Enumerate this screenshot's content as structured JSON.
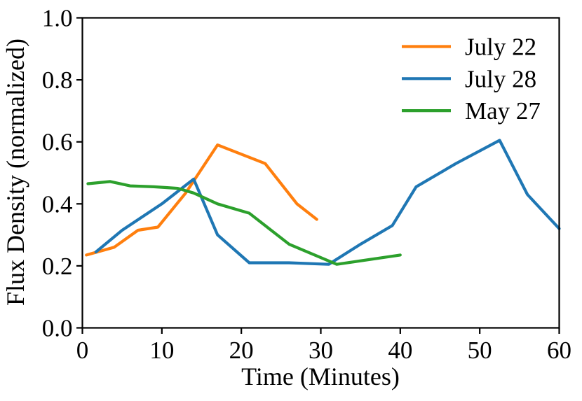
{
  "chart_data": {
    "type": "line",
    "title": "",
    "xlabel": "Time (Minutes)",
    "ylabel": "Flux Density (normalized)",
    "xlim": [
      0,
      60
    ],
    "ylim": [
      0.0,
      1.0
    ],
    "x_ticks": [
      0,
      10,
      20,
      30,
      40,
      50,
      60
    ],
    "y_ticks": [
      0.0,
      0.2,
      0.4,
      0.6,
      0.8,
      1.0
    ],
    "grid": false,
    "legend_position": "upper right",
    "axis_color": "#000000",
    "series": [
      {
        "name": "July 22",
        "color": "#ff7f0e",
        "points": [
          [
            0.5,
            0.235
          ],
          [
            4,
            0.26
          ],
          [
            7,
            0.315
          ],
          [
            9.5,
            0.325
          ],
          [
            13,
            0.435
          ],
          [
            17,
            0.59
          ],
          [
            23,
            0.53
          ],
          [
            27,
            0.4
          ],
          [
            29.5,
            0.35
          ]
        ]
      },
      {
        "name": "July 28",
        "color": "#1f77b4",
        "points": [
          [
            1.7,
            0.245
          ],
          [
            5,
            0.315
          ],
          [
            10,
            0.4
          ],
          [
            14,
            0.48
          ],
          [
            17,
            0.3
          ],
          [
            21,
            0.21
          ],
          [
            26,
            0.21
          ],
          [
            31,
            0.205
          ],
          [
            35,
            0.27
          ],
          [
            39,
            0.33
          ],
          [
            42,
            0.455
          ],
          [
            47,
            0.53
          ],
          [
            52.5,
            0.605
          ],
          [
            56,
            0.43
          ],
          [
            60,
            0.32
          ]
        ]
      },
      {
        "name": "May 27",
        "color": "#2ca02c",
        "points": [
          [
            0.7,
            0.465
          ],
          [
            3.5,
            0.472
          ],
          [
            6,
            0.458
          ],
          [
            9,
            0.455
          ],
          [
            12,
            0.45
          ],
          [
            14,
            0.435
          ],
          [
            17,
            0.4
          ],
          [
            21,
            0.37
          ],
          [
            26,
            0.27
          ],
          [
            32,
            0.205
          ],
          [
            40,
            0.235
          ]
        ]
      }
    ]
  }
}
